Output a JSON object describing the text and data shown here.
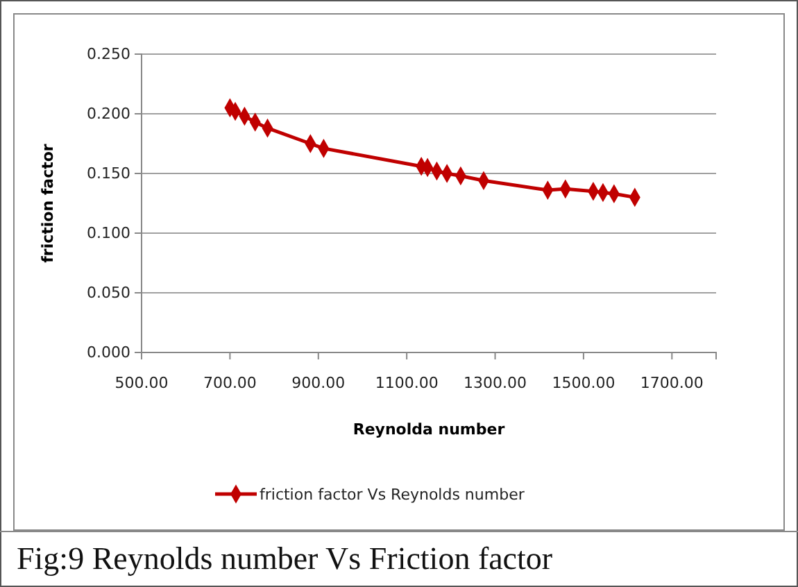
{
  "chart_data": {
    "type": "line",
    "xlabel": "Reynolda number",
    "ylabel": "friction factor",
    "annotations": [
      "Fig:9 Reynolds number Vs Friction factor"
    ],
    "x": [
      700,
      712,
      733,
      757,
      785,
      882,
      912,
      1133,
      1147,
      1168,
      1191,
      1222,
      1274,
      1419,
      1459,
      1522,
      1544,
      1569,
      1616
    ],
    "series": [
      {
        "name": "friction factor Vs Reynolds number",
        "color": "#c00000",
        "values": [
          0.205,
          0.202,
          0.198,
          0.193,
          0.188,
          0.175,
          0.171,
          0.156,
          0.155,
          0.152,
          0.15,
          0.148,
          0.144,
          0.136,
          0.137,
          0.135,
          0.134,
          0.133,
          0.13
        ]
      }
    ],
    "xlim": [
      500,
      1800
    ],
    "xticks": [
      {
        "value": 500,
        "label": "500.00"
      },
      {
        "value": 700,
        "label": "700.00"
      },
      {
        "value": 900,
        "label": "900.00"
      },
      {
        "value": 1100,
        "label": "1100.00"
      },
      {
        "value": 1300,
        "label": "1300.00"
      },
      {
        "value": 1500,
        "label": "1500.00"
      },
      {
        "value": 1700,
        "label": "1700.00"
      }
    ],
    "ylim": [
      0,
      0.25
    ],
    "yticks": [
      {
        "value": 0,
        "label": "0.000"
      },
      {
        "value": 0.05,
        "label": "0.050"
      },
      {
        "value": 0.1,
        "label": "0.100"
      },
      {
        "value": 0.15,
        "label": "0.150"
      },
      {
        "value": 0.2,
        "label": "0.200"
      },
      {
        "value": 0.25,
        "label": "0.250"
      }
    ],
    "grid": "y",
    "legend": "bottom",
    "marker": "diamond",
    "line_style": "solid"
  }
}
